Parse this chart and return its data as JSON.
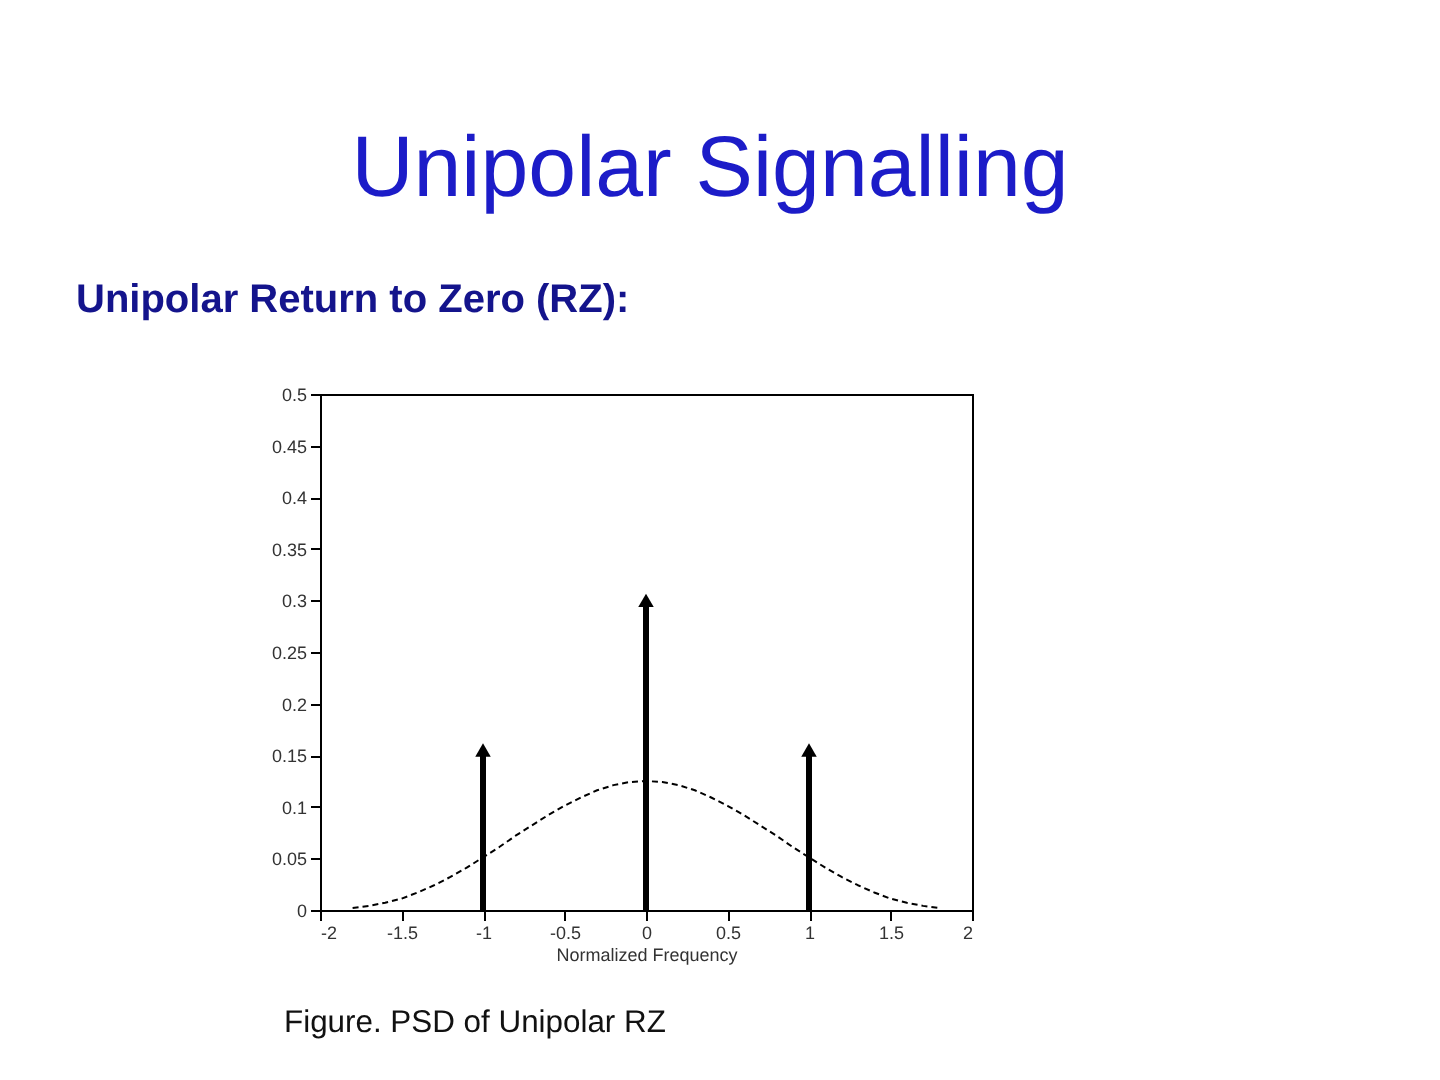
{
  "chart_data": {
    "type": "line",
    "title": "Unipolar Signalling",
    "subtitle": "Unipolar Return to Zero (RZ):",
    "xlabel": "Normalized Frequency",
    "annotations": [
      "Figure. PSD of Unipolar RZ"
    ],
    "xlim": [
      -2,
      2
    ],
    "ylim": [
      0,
      0.5
    ],
    "xticks": [
      -2,
      -1.5,
      -1,
      -0.5,
      0,
      0.5,
      1,
      1.5,
      2
    ],
    "yticks": [
      0,
      0.05,
      0.1,
      0.15,
      0.2,
      0.25,
      0.3,
      0.35,
      0.4,
      0.45,
      0.5
    ],
    "grid": false,
    "series": [
      {
        "color": "#000000",
        "line_style": "dashed",
        "marker": "none",
        "x": [
          -1.8,
          -1.7,
          -1.6,
          -1.5,
          -1.4,
          -1.3,
          -1.2,
          -1.1,
          -1.0,
          -0.9,
          -0.8,
          -0.7,
          -0.6,
          -0.5,
          -0.4,
          -0.3,
          -0.2,
          -0.1,
          0,
          0.1,
          0.2,
          0.3,
          0.4,
          0.5,
          0.6,
          0.7,
          0.8,
          0.9,
          1.0,
          1.1,
          1.2,
          1.3,
          1.4,
          1.5,
          1.6,
          1.7,
          1.8
        ],
        "values": [
          0.002,
          0.004,
          0.007,
          0.011,
          0.017,
          0.024,
          0.032,
          0.041,
          0.051,
          0.061,
          0.072,
          0.082,
          0.092,
          0.101,
          0.109,
          0.116,
          0.121,
          0.124,
          0.125,
          0.124,
          0.121,
          0.116,
          0.109,
          0.101,
          0.092,
          0.082,
          0.072,
          0.061,
          0.051,
          0.041,
          0.032,
          0.024,
          0.017,
          0.011,
          0.007,
          0.004,
          0.002
        ]
      },
      {
        "type": "lollipop",
        "color": "#000000",
        "marker": "triangle",
        "x": [
          -1,
          0,
          1
        ],
        "values": [
          0.155,
          0.3,
          0.155
        ]
      }
    ]
  }
}
